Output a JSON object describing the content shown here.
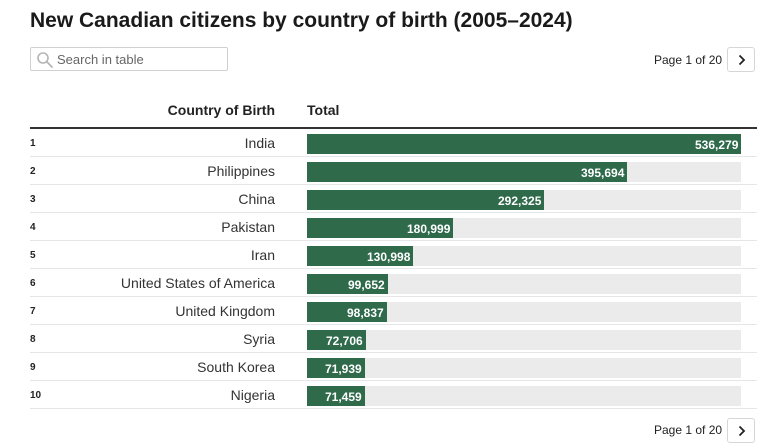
{
  "title": "New Canadian citizens by country of birth (2005–2024)",
  "search": {
    "placeholder": "Search in table",
    "icon": "search-icon"
  },
  "pager": {
    "label": "Page 1 of 20",
    "next_icon": "chevron-right-icon"
  },
  "footer_pager": {
    "label": "Page 1 of 20"
  },
  "columns": {
    "country": "Country of Birth",
    "total": "Total"
  },
  "colors": {
    "bar": "#2f6a4b",
    "track": "#ebebeb"
  },
  "chart_data": {
    "type": "bar",
    "title": "New Canadian citizens by country of birth (2005–2024)",
    "orientation": "horizontal",
    "xlim": [
      0,
      536279
    ],
    "categories": [
      "India",
      "Philippines",
      "China",
      "Pakistan",
      "Iran",
      "United States of America",
      "United Kingdom",
      "Syria",
      "South Korea",
      "Nigeria"
    ],
    "values": [
      536279,
      395694,
      292325,
      180999,
      130998,
      99652,
      98837,
      72706,
      71939,
      71459
    ],
    "value_labels": [
      "536,279",
      "395,694",
      "292,325",
      "180,999",
      "130,998",
      "99,652",
      "98,837",
      "72,706",
      "71,939",
      "71,459"
    ],
    "ranks": [
      "1",
      "2",
      "3",
      "4",
      "5",
      "6",
      "7",
      "8",
      "9",
      "10"
    ]
  }
}
